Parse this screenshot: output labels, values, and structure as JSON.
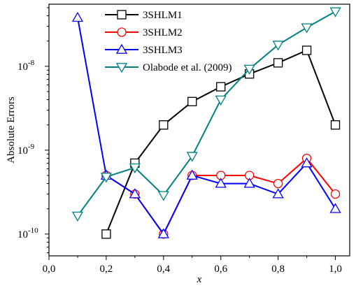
{
  "chart_data": {
    "type": "line",
    "xlabel": "x",
    "ylabel": "Absolute Errors",
    "x_scale": "linear",
    "y_scale": "log",
    "xlim": [
      0.0,
      1.05
    ],
    "ylim": [
      5.5e-11,
      5.5e-08
    ],
    "grid": false,
    "legend_position": "top-center",
    "x_ticks": [
      {
        "value": 0.0,
        "label": "0,0"
      },
      {
        "value": 0.2,
        "label": "0,2"
      },
      {
        "value": 0.4,
        "label": "0,4"
      },
      {
        "value": 0.6,
        "label": "0,6"
      },
      {
        "value": 0.8,
        "label": "0,8"
      },
      {
        "value": 1.0,
        "label": "1,0"
      }
    ],
    "y_ticks": [
      {
        "value": 1e-10,
        "mantissa": "10",
        "exponent": "-10"
      },
      {
        "value": 1e-09,
        "mantissa": "10",
        "exponent": "-9"
      },
      {
        "value": 1e-08,
        "mantissa": "10",
        "exponent": "-8"
      }
    ],
    "series": [
      {
        "name": "3SHLM1",
        "color": "#000000",
        "marker": "square",
        "x": [
          0.2,
          0.3,
          0.4,
          0.5,
          0.6,
          0.7,
          0.8,
          0.9,
          1.0
        ],
        "y": [
          1e-10,
          7e-10,
          2e-09,
          3.8e-09,
          5.7e-09,
          8.1e-09,
          1.1e-08,
          1.55e-08,
          2e-09
        ]
      },
      {
        "name": "3SHLM2",
        "color": "#ff0000",
        "marker": "circle",
        "x": [
          0.2,
          0.3,
          0.4,
          0.5,
          0.6,
          0.7,
          0.8,
          0.9,
          1.0
        ],
        "y": [
          5e-10,
          3e-10,
          1e-10,
          5e-10,
          5e-10,
          5e-10,
          4e-10,
          8e-10,
          3e-10
        ]
      },
      {
        "name": "3SHLM3",
        "color": "#0000ff",
        "marker": "triangle-up",
        "x": [
          0.1,
          0.2,
          0.3,
          0.4,
          0.5,
          0.6,
          0.7,
          0.8,
          0.9,
          1.0
        ],
        "y": [
          3.8e-08,
          5e-10,
          3e-10,
          1e-10,
          5e-10,
          4e-10,
          4e-10,
          3e-10,
          7e-10,
          2e-10
        ]
      },
      {
        "name": "Olabode et al. (2009)",
        "color": "#008080",
        "marker": "triangle-down",
        "x": [
          0.1,
          0.2,
          0.3,
          0.4,
          0.5,
          0.6,
          0.7,
          0.8,
          0.9,
          1.0
        ],
        "y": [
          1.65e-10,
          4.8e-10,
          6.2e-10,
          2.9e-10,
          8.5e-10,
          4e-09,
          9.3e-09,
          1.8e-08,
          2.9e-08,
          4.5e-08
        ]
      }
    ]
  }
}
